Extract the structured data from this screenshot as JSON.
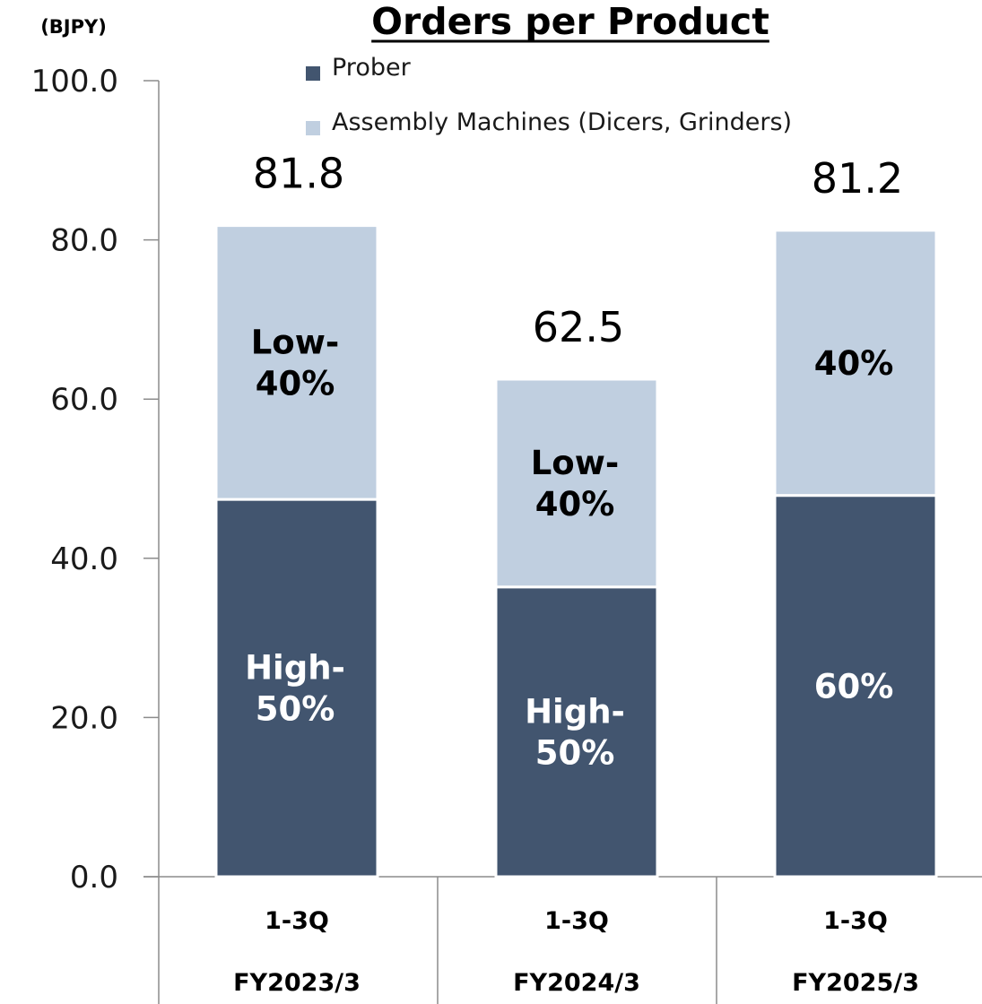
{
  "chart_data": {
    "type": "bar",
    "stacked": true,
    "title": "Orders per Product",
    "unit_label": "(BJPY)",
    "categories": [
      {
        "line1": "1-3Q",
        "line2": "FY2023/3"
      },
      {
        "line1": "1-3Q",
        "line2": "FY2024/3"
      },
      {
        "line1": "1-3Q",
        "line2": "FY2025/3"
      }
    ],
    "series": [
      {
        "name": "Prober",
        "color": "#42556f",
        "values": [
          47.4,
          36.4,
          47.9
        ],
        "labels": [
          [
            "High-",
            "50%"
          ],
          [
            "High-",
            "50%"
          ],
          [
            "60%"
          ]
        ],
        "label_color": "#ffffff"
      },
      {
        "name": "Assembly Machines (Dicers, Grinders)",
        "color": "#c0cfe0",
        "values": [
          34.4,
          26.1,
          33.3
        ],
        "labels": [
          [
            "Low-",
            "40%"
          ],
          [
            "Low-",
            "40%"
          ],
          [
            "40%"
          ]
        ],
        "label_color": "#000000"
      }
    ],
    "totals": [
      "81.8",
      "62.5",
      "81.2"
    ],
    "ylim": [
      0,
      100
    ],
    "yticks": [
      "0.0",
      "20.0",
      "40.0",
      "60.0",
      "80.0",
      "100.0"
    ],
    "grid": false,
    "legend_position": "top"
  }
}
